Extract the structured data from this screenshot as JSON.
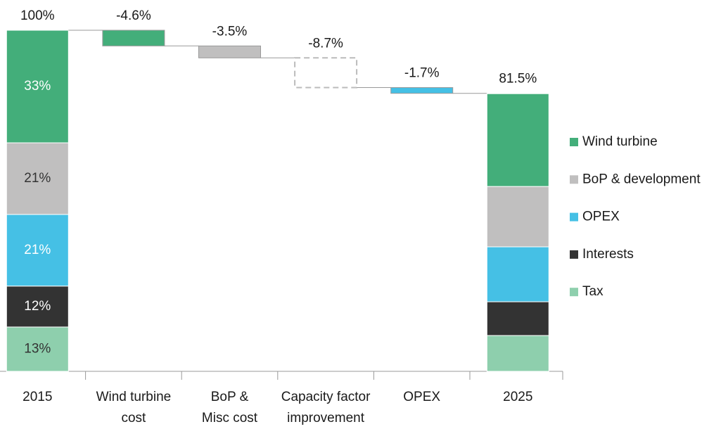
{
  "chart_data": {
    "type": "waterfall",
    "categories": [
      "2015",
      "Wind turbine cost",
      "BoP & Misc cost",
      "Capacity factor improvement",
      "OPEX",
      "2025"
    ],
    "series": [
      {
        "name": "Wind turbine",
        "color": "#43ae7a",
        "label_color": "#ffffff",
        "values": [
          33,
          null,
          null,
          null,
          null,
          27.2
        ],
        "value_labels": [
          "33%",
          null,
          null,
          null,
          null,
          null
        ]
      },
      {
        "name": "BoP & development",
        "color": "#c0bfbf",
        "label_color": "#333333",
        "values": [
          21,
          null,
          null,
          null,
          null,
          17.7
        ],
        "value_labels": [
          "21%",
          null,
          null,
          null,
          null,
          null
        ]
      },
      {
        "name": "OPEX",
        "color": "#45c0e5",
        "label_color": "#ffffff",
        "values": [
          21,
          null,
          null,
          null,
          null,
          16.1
        ],
        "value_labels": [
          "21%",
          null,
          null,
          null,
          null,
          null
        ]
      },
      {
        "name": "Interests",
        "color": "#333333",
        "label_color": "#ffffff",
        "values": [
          12,
          null,
          null,
          null,
          null,
          9.9
        ],
        "value_labels": [
          "12%",
          null,
          null,
          null,
          null,
          null
        ]
      },
      {
        "name": "Tax",
        "color": "#8ecfad",
        "label_color": "#333333",
        "values": [
          13,
          null,
          null,
          null,
          null,
          10.5
        ],
        "value_labels": [
          "13%",
          null,
          null,
          null,
          null,
          null
        ]
      }
    ],
    "totals": {
      "values": [
        100,
        null,
        null,
        null,
        null,
        81.5
      ],
      "value_labels": [
        "100%",
        null,
        null,
        null,
        null,
        "81.5%"
      ]
    },
    "steps": {
      "values": [
        null,
        -4.6,
        -3.5,
        -8.7,
        -1.7,
        null
      ],
      "value_labels": [
        null,
        "-4.6%",
        "-3.5%",
        "-8.7%",
        "-1.7%",
        null
      ],
      "colors": [
        null,
        "#43ae7a",
        "#c0bfbf",
        "none",
        "#45c0e5",
        null
      ],
      "dashed": [
        null,
        false,
        false,
        true,
        false,
        null
      ]
    },
    "ylim": [
      0,
      100
    ],
    "legend": "right"
  }
}
